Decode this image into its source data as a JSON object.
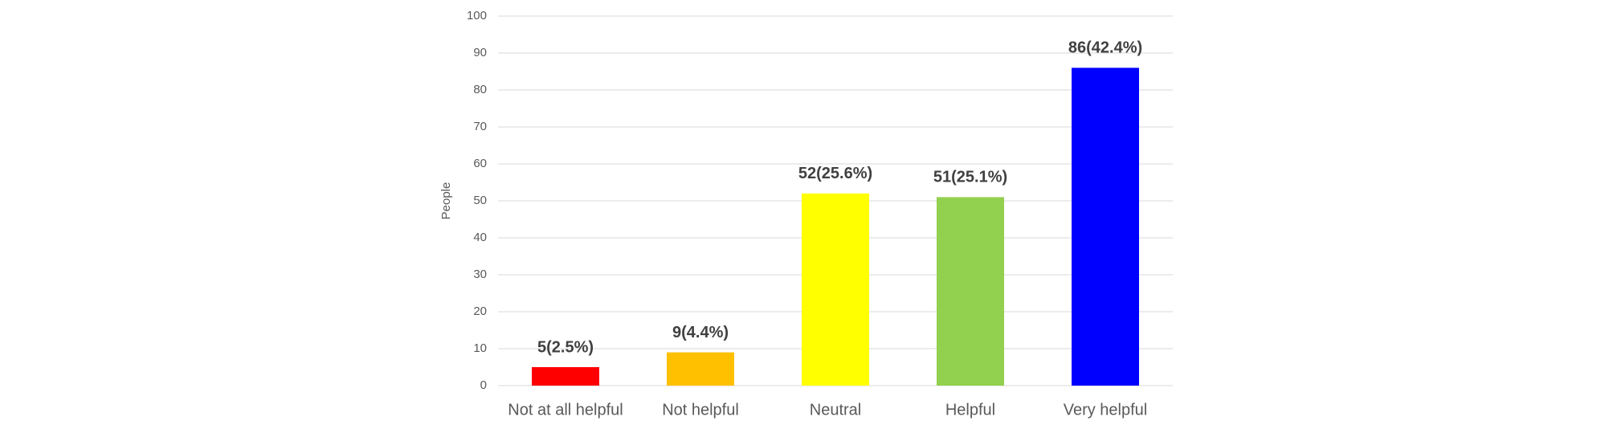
{
  "chart_data": {
    "type": "bar",
    "y_label": "People",
    "categories": [
      "Not at all helpful",
      "Not helpful",
      "Neutral",
      "Helpful",
      "Very helpful"
    ],
    "values": [
      5,
      9,
      52,
      51,
      86
    ],
    "value_labels": [
      "5(2.5%)",
      "9(4.4%)",
      "52(25.6%)",
      "51(25.1%)",
      "86(42.4%)"
    ],
    "colors": [
      "#ff0000",
      "#ffc000",
      "#ffff00",
      "#92d050",
      "#0000ff"
    ],
    "ylim": [
      0,
      100
    ],
    "yticks": [
      0,
      10,
      20,
      30,
      40,
      50,
      60,
      70,
      80,
      90,
      100
    ],
    "grid": true
  }
}
